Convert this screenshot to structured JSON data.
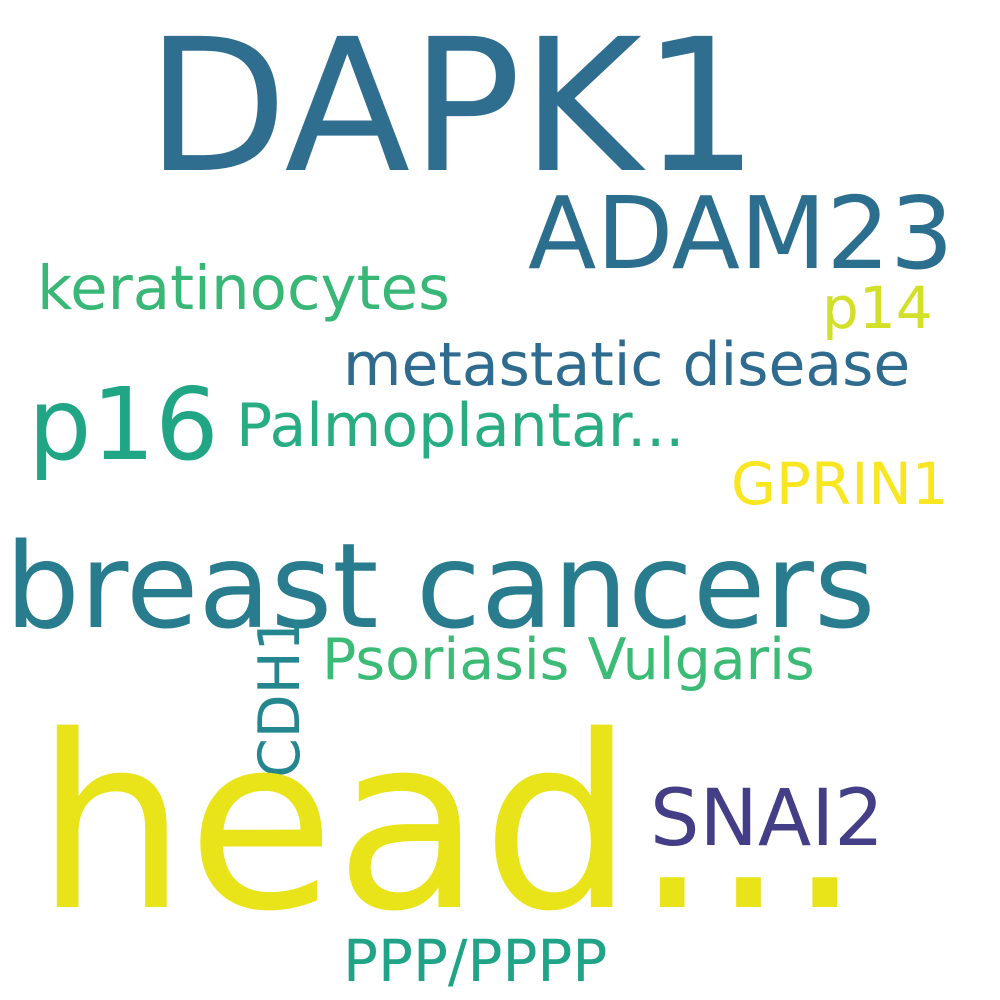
{
  "words": [
    {
      "id": "dapk1",
      "text": "DAPK1",
      "color": "#306e8f"
    },
    {
      "id": "adam23",
      "text": "ADAM23",
      "color": "#2c6e8e"
    },
    {
      "id": "keratinocytes",
      "text": "keratinocytes",
      "color": "#38b777"
    },
    {
      "id": "p14",
      "text": "p14",
      "color": "#d3e02a"
    },
    {
      "id": "metastatic",
      "text": "metastatic disease",
      "color": "#2f6b8e"
    },
    {
      "id": "p16",
      "text": "p16",
      "color": "#21a685"
    },
    {
      "id": "palmoplantar",
      "text": "Palmoplantar...",
      "color": "#27ad81"
    },
    {
      "id": "gprin1",
      "text": "GPRIN1",
      "color": "#f8e621"
    },
    {
      "id": "breast",
      "text": "breast cancers",
      "color": "#287c8e"
    },
    {
      "id": "psoriasis",
      "text": "Psoriasis Vulgaris",
      "color": "#3bbb75"
    },
    {
      "id": "cdh1",
      "text": "CDH1",
      "color": "#24868e"
    },
    {
      "id": "snai2",
      "text": "SNAI2",
      "color": "#433e85"
    },
    {
      "id": "head",
      "text": "head...",
      "color": "#e8e419"
    },
    {
      "id": "ppp",
      "text": "PPP/PPPP",
      "color": "#20a386"
    }
  ]
}
